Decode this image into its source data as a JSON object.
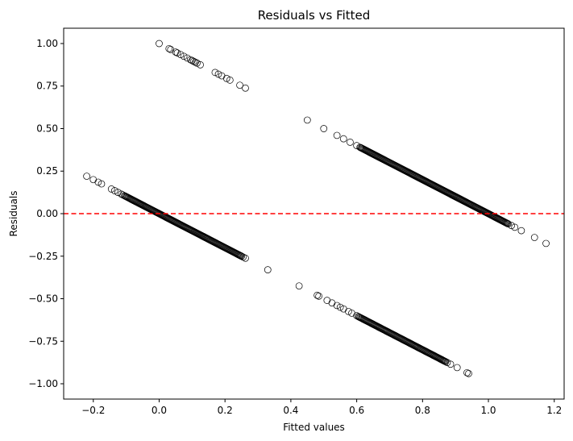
{
  "chart_data": {
    "type": "scatter",
    "title": "Residuals vs Fitted",
    "xlabel": "Fitted values",
    "ylabel": "Residuals",
    "xlim": [
      -0.29,
      1.23
    ],
    "ylim": [
      -1.09,
      1.09
    ],
    "xticks": [
      -0.2,
      0.0,
      0.2,
      0.4,
      0.6,
      0.8,
      1.0,
      1.2
    ],
    "xtick_labels": [
      "−0.2",
      "0.0",
      "0.2",
      "0.4",
      "0.6",
      "0.8",
      "1.0",
      "1.2"
    ],
    "yticks": [
      -1.0,
      -0.75,
      -0.5,
      -0.25,
      0.0,
      0.25,
      0.5,
      0.75,
      1.0
    ],
    "ytick_labels": [
      "−1.00",
      "−0.75",
      "−0.50",
      "−0.25",
      "0.00",
      "0.25",
      "0.50",
      "0.75",
      "1.00"
    ],
    "grid": false,
    "reference_line": {
      "y": 0,
      "color": "#ff0000",
      "style": "dashed"
    },
    "marker": {
      "shape": "hollow-circle",
      "edge_color": "#000000"
    },
    "segments": [
      {
        "name": "",
        "x_range": [
          0.0,
          0.265
        ],
        "note": "",
        "count": 26
      },
      {
        "name": "",
        "x_range": [
          -0.22,
          0.265
        ],
        "count": 160
      },
      {
        "name": "",
        "x_range": [
          0.45,
          1.175
        ],
        "count": 200
      },
      {
        "name": "",
        "x_range": [
          0.33,
          0.94
        ],
        "count": 140
      }
    ],
    "points": [
      [
        0.0,
        1.0
      ],
      [
        0.03,
        0.97
      ],
      [
        0.035,
        0.965
      ],
      [
        0.05,
        0.95
      ],
      [
        0.055,
        0.945
      ],
      [
        0.065,
        0.935
      ],
      [
        0.075,
        0.925
      ],
      [
        0.085,
        0.915
      ],
      [
        0.095,
        0.905
      ],
      [
        0.1,
        0.9
      ],
      [
        0.105,
        0.895
      ],
      [
        0.11,
        0.89
      ],
      [
        0.115,
        0.885
      ],
      [
        0.125,
        0.875
      ],
      [
        0.17,
        0.83
      ],
      [
        0.18,
        0.82
      ],
      [
        0.19,
        0.81
      ],
      [
        0.205,
        0.795
      ],
      [
        0.215,
        0.785
      ],
      [
        0.245,
        0.755
      ],
      [
        0.262,
        0.738
      ],
      [
        -0.22,
        0.22
      ],
      [
        -0.2,
        0.2
      ],
      [
        -0.185,
        0.185
      ],
      [
        -0.175,
        0.175
      ],
      [
        -0.145,
        0.145
      ],
      [
        -0.135,
        0.135
      ],
      [
        -0.125,
        0.125
      ],
      [
        -0.115,
        0.115
      ],
      [
        -0.11,
        0.11
      ],
      [
        0.255,
        -0.255
      ],
      [
        0.262,
        -0.262
      ],
      [
        0.33,
        -0.33
      ],
      [
        0.425,
        -0.425
      ],
      [
        0.48,
        -0.48
      ],
      [
        0.485,
        -0.485
      ],
      [
        0.51,
        -0.51
      ],
      [
        0.525,
        -0.525
      ],
      [
        0.54,
        -0.54
      ],
      [
        0.55,
        -0.55
      ],
      [
        0.56,
        -0.56
      ],
      [
        0.575,
        -0.575
      ],
      [
        0.585,
        -0.585
      ],
      [
        0.6,
        -0.6
      ],
      [
        0.935,
        -0.935
      ],
      [
        0.94,
        -0.94
      ],
      [
        0.905,
        -0.905
      ],
      [
        0.885,
        -0.885
      ],
      [
        0.875,
        -0.875
      ],
      [
        0.45,
        0.55
      ],
      [
        0.5,
        0.5
      ],
      [
        0.54,
        0.46
      ],
      [
        0.56,
        0.44
      ],
      [
        0.58,
        0.42
      ],
      [
        0.6,
        0.4
      ],
      [
        1.1,
        -0.1
      ],
      [
        1.14,
        -0.14
      ],
      [
        1.175,
        -0.175
      ],
      [
        1.08,
        -0.08
      ],
      [
        1.07,
        -0.07
      ]
    ]
  }
}
